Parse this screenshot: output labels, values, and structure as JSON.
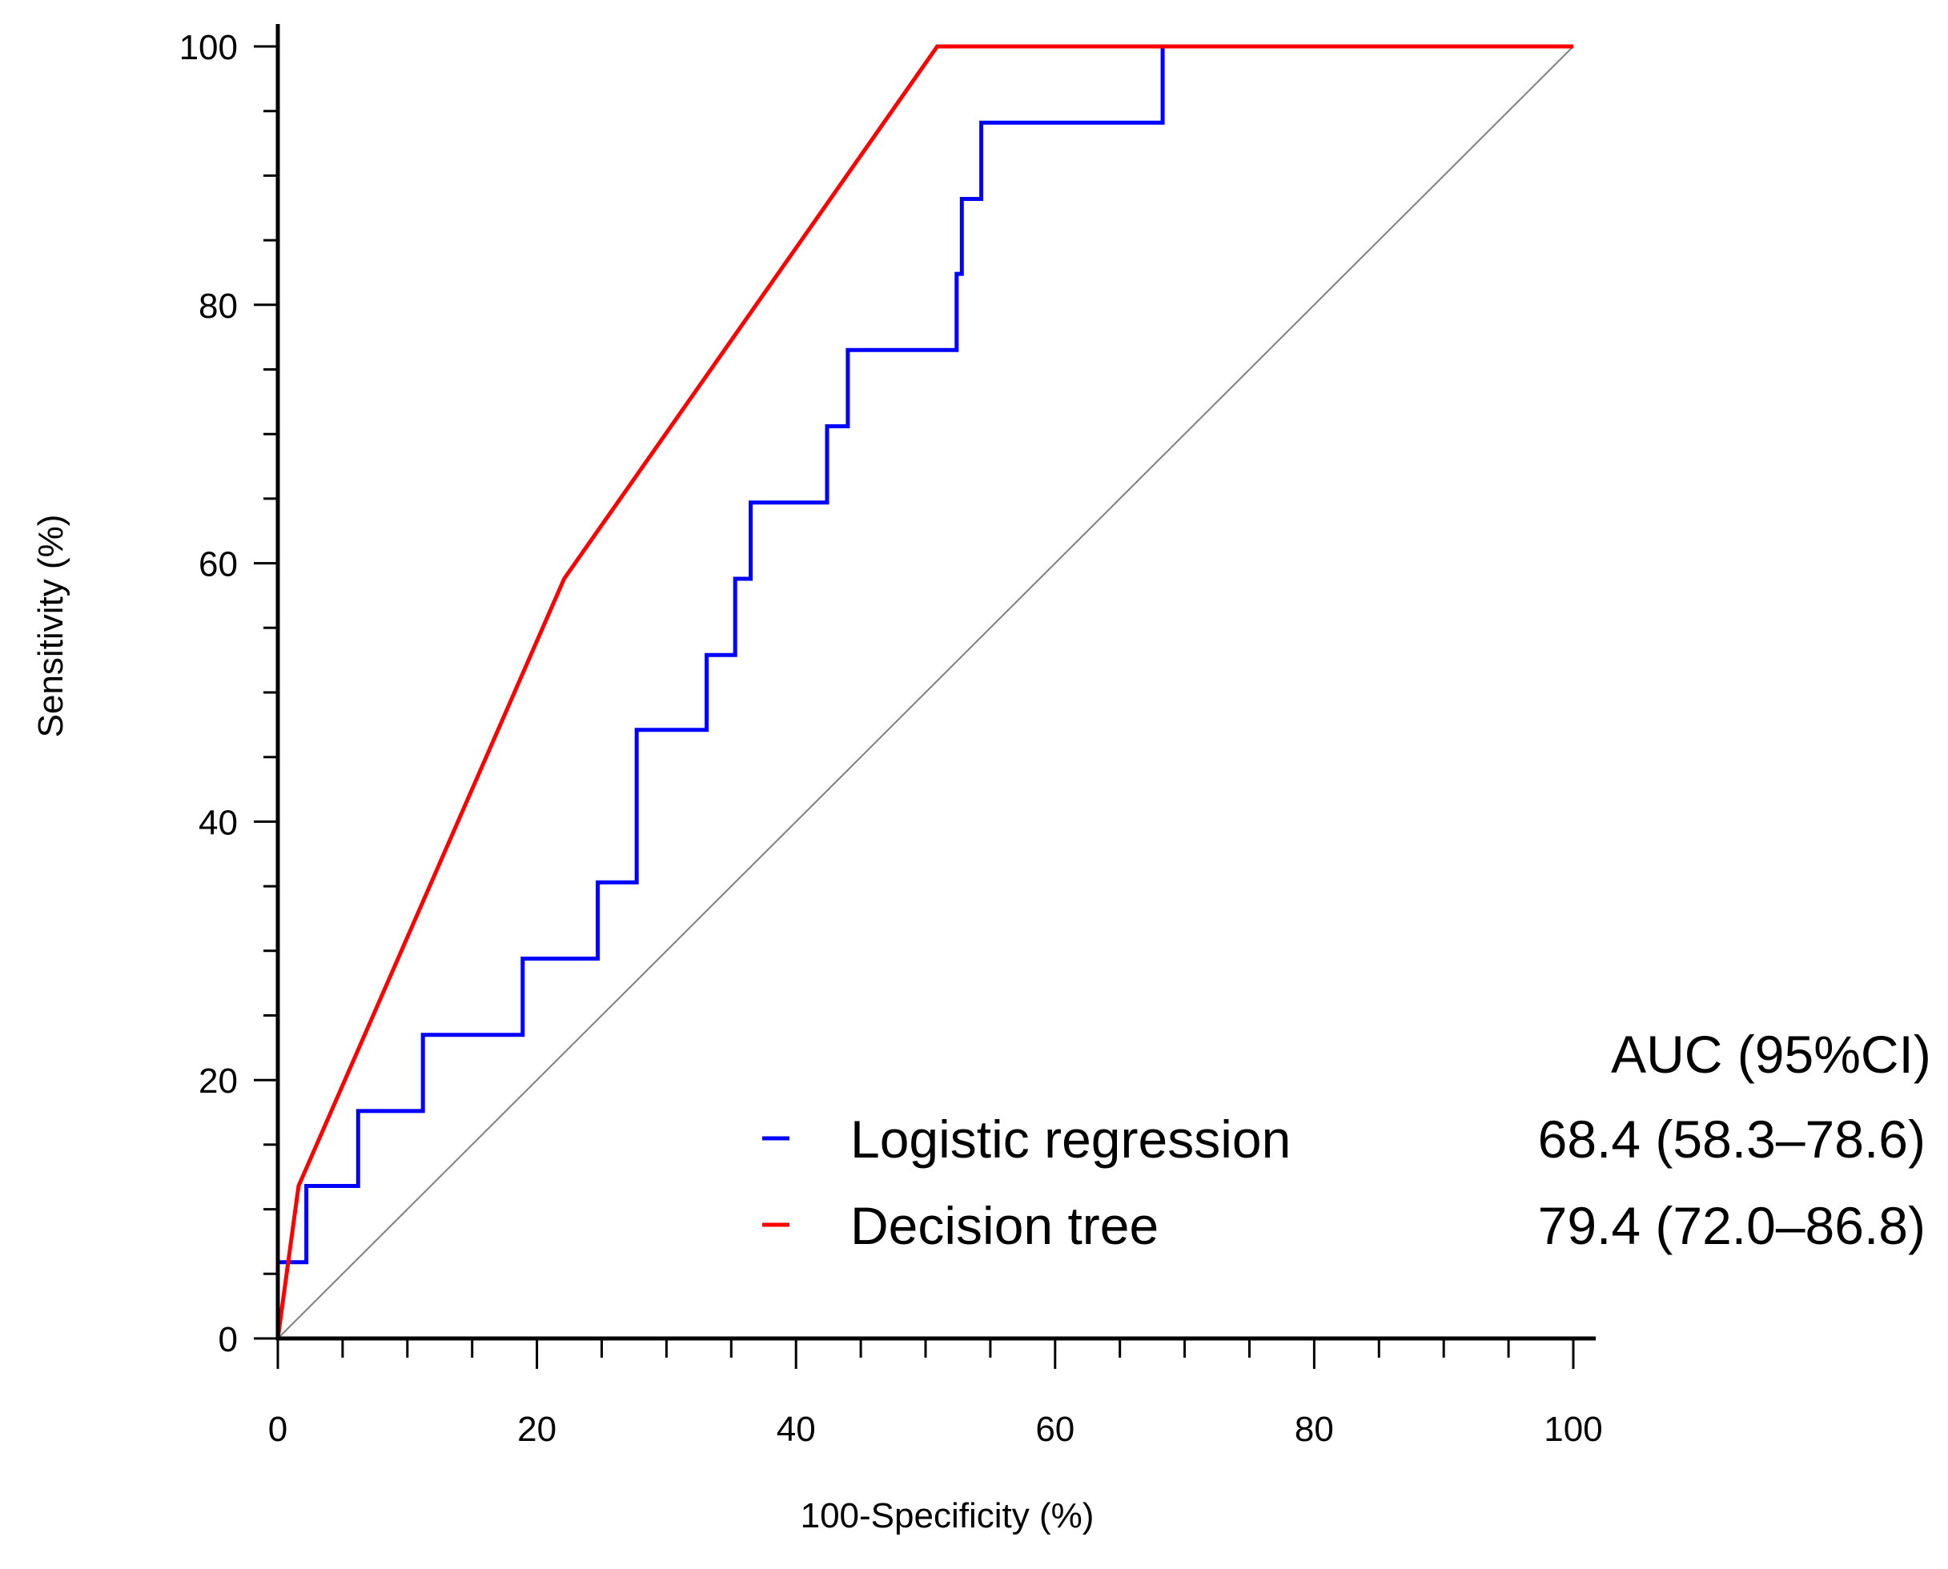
{
  "chart_data": {
    "type": "line",
    "title": "",
    "xlabel": "100-Specificity  (%)",
    "ylabel": "Sensitivity  (%)",
    "xlim": [
      0,
      100
    ],
    "ylim": [
      0,
      100
    ],
    "xticks": [
      0,
      20,
      40,
      60,
      80,
      100
    ],
    "yticks": [
      0,
      20,
      40,
      60,
      80,
      100
    ],
    "xtick_labels": [
      "0",
      "20",
      "40",
      "60",
      "80",
      "100"
    ],
    "ytick_labels": [
      "0",
      "20",
      "40",
      "60",
      "80",
      "100"
    ],
    "minor_tick_step": 5,
    "legend_position": "bottom-right",
    "legend_header": "AUC (95%CI)",
    "series": [
      {
        "name": "Logistic regression",
        "color": "#0000ff",
        "auc_label": "68.4 (58.3–78.6)",
        "x": [
          0,
          0,
          2.2,
          2.2,
          6.2,
          6.2,
          11.2,
          11.2,
          18.9,
          18.9,
          24.7,
          24.7,
          27.7,
          27.7,
          33.1,
          33.1,
          35.3,
          35.3,
          36.5,
          36.5,
          42.4,
          42.4,
          44.0,
          44.0,
          52.4,
          52.4,
          52.8,
          52.8,
          54.3,
          54.3,
          68.3,
          68.3,
          100
        ],
        "y": [
          0,
          5.9,
          5.9,
          11.8,
          11.8,
          17.6,
          17.6,
          23.5,
          23.5,
          29.4,
          29.4,
          35.3,
          35.3,
          47.1,
          47.1,
          52.9,
          52.9,
          58.8,
          58.8,
          64.7,
          64.7,
          70.6,
          70.6,
          76.5,
          76.5,
          82.4,
          82.4,
          88.2,
          88.2,
          94.1,
          94.1,
          100,
          100
        ]
      },
      {
        "name": "Decision tree",
        "color": "#ff0000",
        "auc_label": "79.4 (72.0–86.8)",
        "x": [
          0,
          1.6,
          22.1,
          50.9,
          100
        ],
        "y": [
          0,
          11.8,
          58.8,
          100,
          100
        ]
      },
      {
        "name": "Reference",
        "color": "#808080",
        "x": [
          0,
          100
        ],
        "y": [
          0,
          100
        ]
      }
    ]
  }
}
